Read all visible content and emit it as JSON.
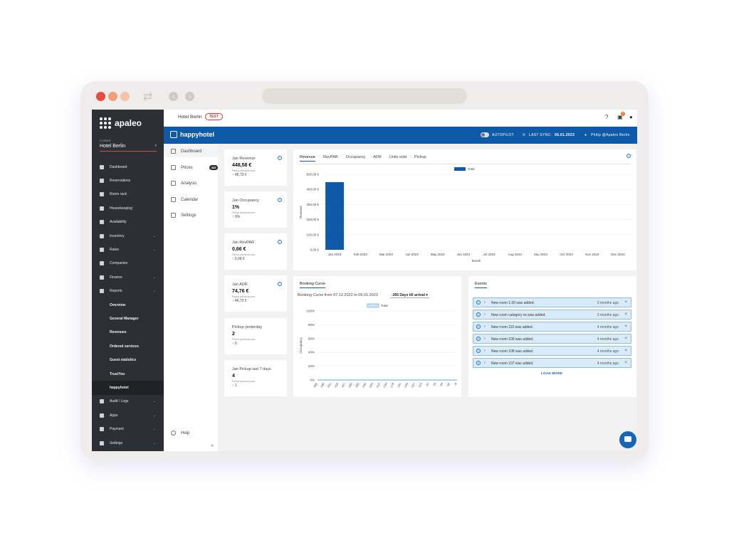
{
  "window": {
    "colors": {
      "close": "#e74c3c",
      "min": "#f0a07a",
      "max": "#f2c4a8"
    }
  },
  "sidebar": {
    "brand": "apaleo",
    "context_label": "Context",
    "context_value": "Hotel Berlin",
    "items": [
      {
        "label": "Dashboard",
        "icon": "dashboard-icon",
        "chevron": false
      },
      {
        "label": "Reservations",
        "icon": "bar-chart-icon",
        "chevron": false
      },
      {
        "label": "Room rack",
        "icon": "calendar-icon",
        "chevron": false
      },
      {
        "label": "Housekeeping",
        "icon": "broom-icon",
        "chevron": false
      },
      {
        "label": "Availability",
        "icon": "calendar-check-icon",
        "chevron": false
      },
      {
        "label": "Inventory",
        "icon": "bed-icon",
        "chevron": true
      },
      {
        "label": "Rates",
        "icon": "layers-icon",
        "chevron": true
      },
      {
        "label": "Companies",
        "icon": "building-icon",
        "chevron": false
      },
      {
        "label": "Finance",
        "icon": "money-icon",
        "chevron": true
      },
      {
        "label": "Reports",
        "icon": "report-icon",
        "chevron": true
      }
    ],
    "report_sub": [
      "Overview",
      "General Manager",
      "Revenues",
      "Ordered services",
      "Guest statistics",
      "TrustYou",
      "happyhotel"
    ],
    "items_bottom": [
      {
        "label": "Audit / Logs",
        "icon": "audit-icon",
        "chevron": true
      },
      {
        "label": "Apps",
        "icon": "grid-icon",
        "chevron": true
      },
      {
        "label": "Payment",
        "icon": "payment-icon",
        "chevron": true
      },
      {
        "label": "Settings",
        "icon": "gear-icon",
        "chevron": true
      }
    ]
  },
  "topbar": {
    "hotel": "Hotel Berlin",
    "badge": "TEST",
    "notif_count": "1"
  },
  "hhbar": {
    "brand": "happyhotel",
    "autopilot": "AUTOPILOT",
    "last_sync_label": "LAST SYNC:",
    "last_sync_value": "06.01.2023",
    "user": "Philip @Apaleo Berlin"
  },
  "subnav": {
    "items": [
      "Dashboard",
      "Prices",
      "Analysis",
      "Calendar",
      "Settings"
    ],
    "prices_badge": "365",
    "help": "Help",
    "collapse": "«"
  },
  "kpis": [
    {
      "title": "Jan Revenue",
      "value": "448,58 €",
      "sub": "Period previous year",
      "change": "↑ 46,73 €"
    },
    {
      "title": "Jan Occupancy",
      "value": "1%",
      "sub": "Period previous year",
      "change": "↑ 0%"
    },
    {
      "title": "Jan RevPAR",
      "value": "0,66 €",
      "sub": "Period previous year",
      "change": "↑ 0,08 €"
    },
    {
      "title": "Jan ADR",
      "value": "74,76 €",
      "sub": "Period previous year",
      "change": "↑ 46,73 €"
    },
    {
      "title": "Pickup yesterday",
      "value": "2",
      "sub": "Period previous year",
      "change": "↑ 0"
    },
    {
      "title": "Jan Pickup last 7 days",
      "value": "4",
      "sub": "Period previous year",
      "change": "↑ 1"
    }
  ],
  "revenue_tabs": [
    "Revenue",
    "RevPAR",
    "Occupancy",
    "ADR",
    "Units sold",
    "Pickup"
  ],
  "booking": {
    "title": "Booking Curve",
    "subtitle": "Booking Curve from 07.12.2022 to 06.01.2023",
    "range": "-365 Days till arrival"
  },
  "events": {
    "title": "Events",
    "items": [
      {
        "text": "New room 1.00 was added.",
        "time": "3 months ago"
      },
      {
        "text": "New room category xx was added.",
        "time": "3 months ago"
      },
      {
        "text": "New room 110 was added.",
        "time": "4 months ago"
      },
      {
        "text": "New room 109 was added.",
        "time": "4 months ago"
      },
      {
        "text": "New room 108 was added.",
        "time": "4 months ago"
      },
      {
        "text": "New room 107 was added.",
        "time": "4 months ago"
      }
    ],
    "load_more": "LOAD MORE"
  },
  "chart_data": [
    {
      "type": "bar",
      "title": "",
      "xlabel": "Month",
      "ylabel": "Revenue",
      "legend": "top-center",
      "series": [
        {
          "name": "Total",
          "color": "#0e5aa8",
          "values": [
            448.58,
            0,
            0,
            0,
            0,
            0,
            0,
            0,
            0,
            0,
            0,
            0
          ]
        }
      ],
      "categories": [
        "Jan 2023",
        "Feb 2023",
        "Mar 2023",
        "Apr 2023",
        "May 2023",
        "Jun 2023",
        "Jul 2023",
        "Aug 2023",
        "Sep 2023",
        "Oct 2023",
        "Nov 2023",
        "Dec 2023"
      ],
      "yticks": [
        "0,00 €",
        "100,00 €",
        "200,00 €",
        "300,00 €",
        "400,00 €",
        "500,00 €"
      ],
      "ylim": [
        0,
        500
      ],
      "grid": true
    },
    {
      "type": "line",
      "title": "",
      "xlabel": "",
      "ylabel": "Occupancy",
      "legend": "top-center",
      "series": [
        {
          "name": "Total",
          "color": "#5aa3d8",
          "values": [
            0,
            0,
            0,
            0,
            0,
            0,
            0,
            0,
            0,
            0,
            0,
            0,
            0,
            0,
            0,
            0,
            0,
            0,
            0,
            0,
            0
          ]
        }
      ],
      "x": [
        "-360",
        "-346",
        "-331",
        "-316",
        "-297",
        "-280",
        "-263",
        "-246",
        "-229",
        "-212",
        "-195",
        "-178",
        "-161",
        "-144",
        "-127",
        "-110",
        "-93",
        "-76",
        "-59",
        "-42",
        "-8"
      ],
      "yticks": [
        "0%",
        "20%",
        "40%",
        "60%",
        "80%",
        "100%"
      ],
      "ylim": [
        0,
        100
      ],
      "grid": true
    }
  ]
}
